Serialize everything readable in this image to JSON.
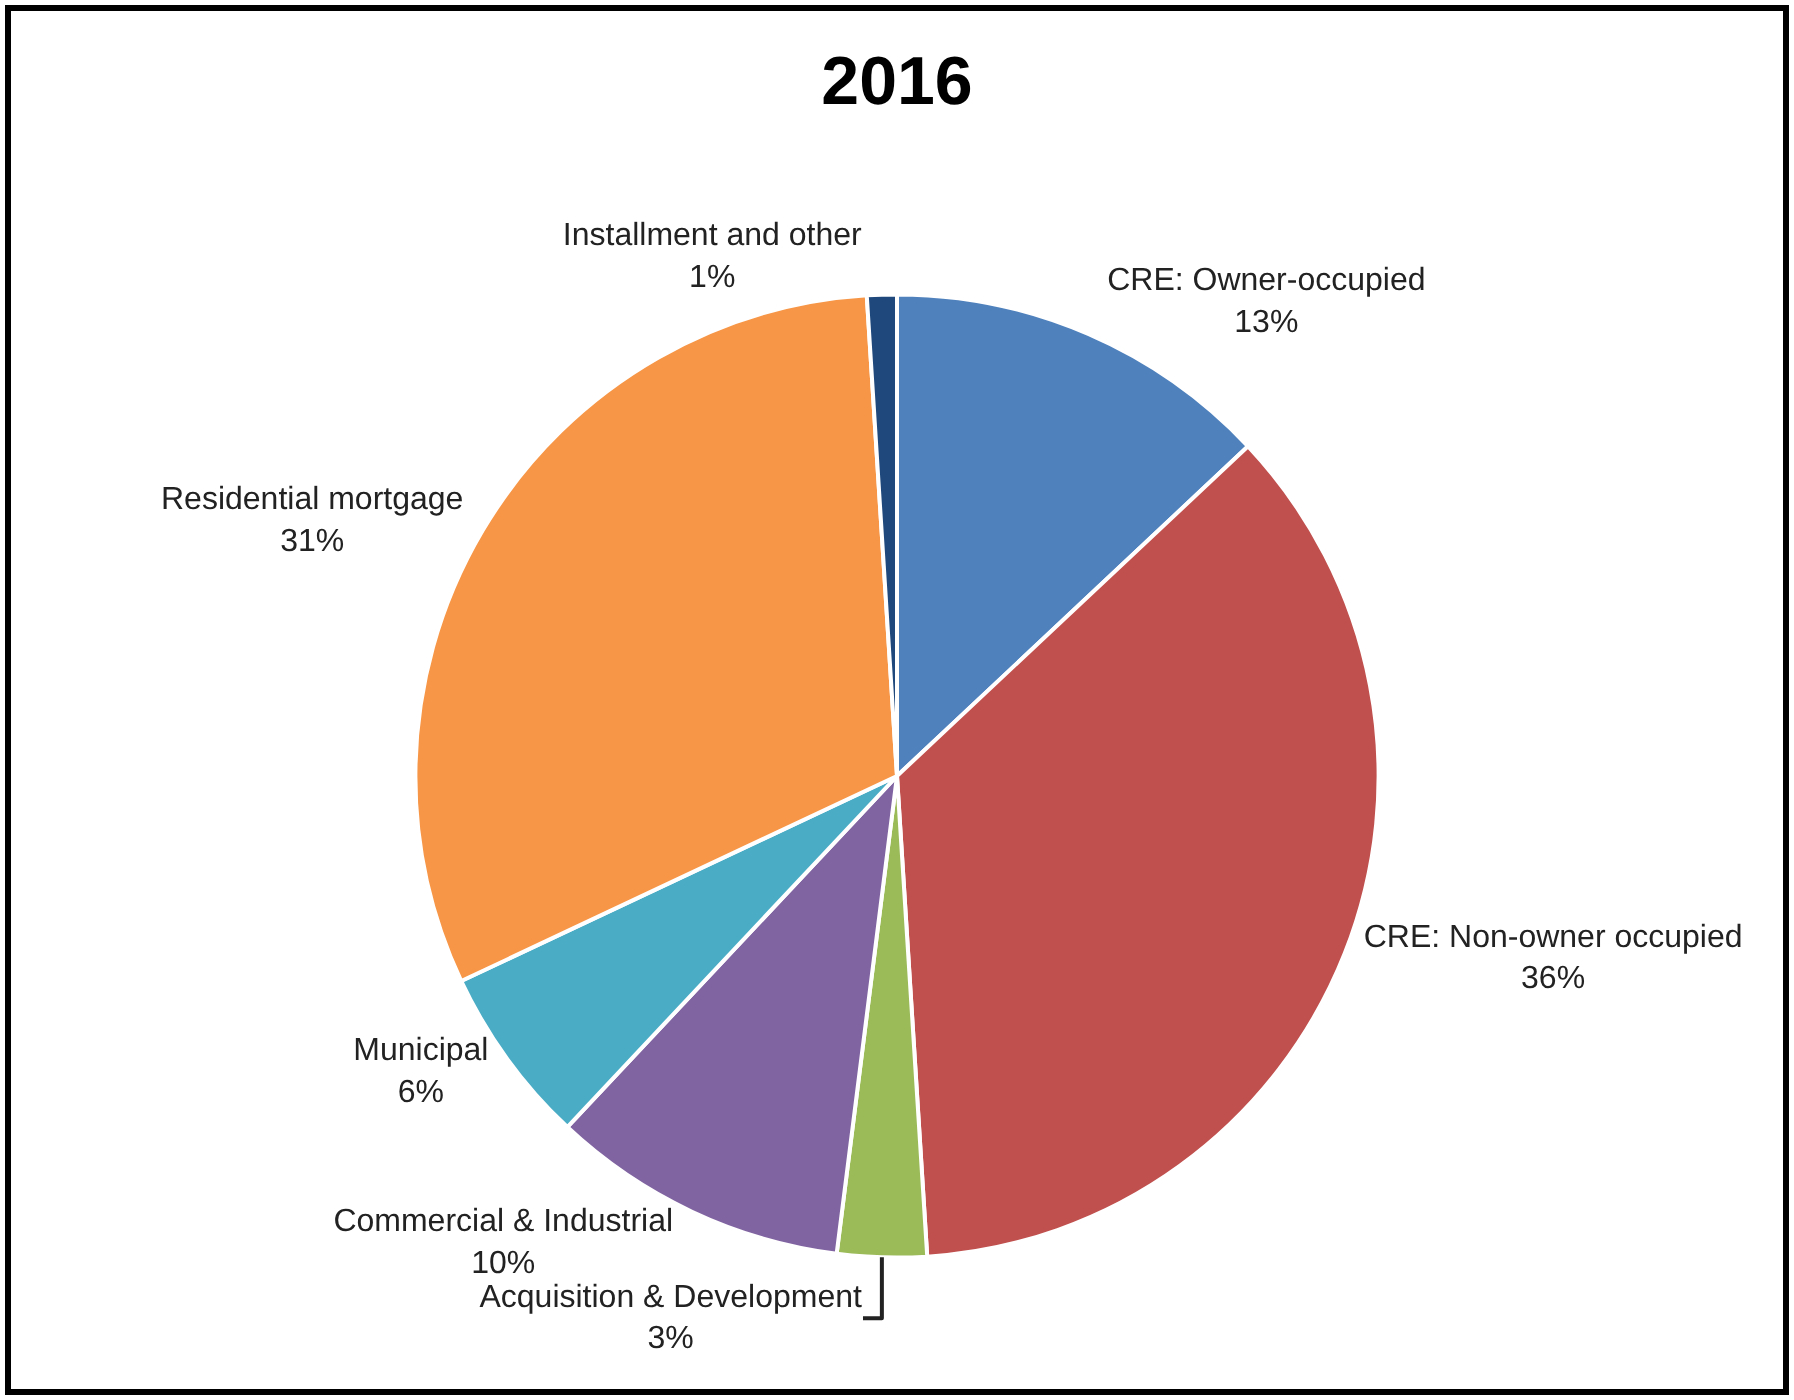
{
  "chart_data": {
    "type": "pie",
    "title": "2016",
    "categories": [
      "CRE: Owner-occupied",
      "CRE: Non-owner occupied",
      "Acquisition & Development",
      "Commercial & Industrial",
      "Municipal",
      "Residential mortgage",
      "Installment and other"
    ],
    "values": [
      13,
      36,
      3,
      10,
      6,
      31,
      1
    ],
    "value_labels": [
      "13%",
      "36%",
      "3%",
      "10%",
      "6%",
      "31%",
      "1%"
    ],
    "colors": [
      "#4f81bd",
      "#c0504d",
      "#9bbb59",
      "#8064a2",
      "#4bacc6",
      "#f79646",
      "#1f497d"
    ],
    "legend": false
  }
}
